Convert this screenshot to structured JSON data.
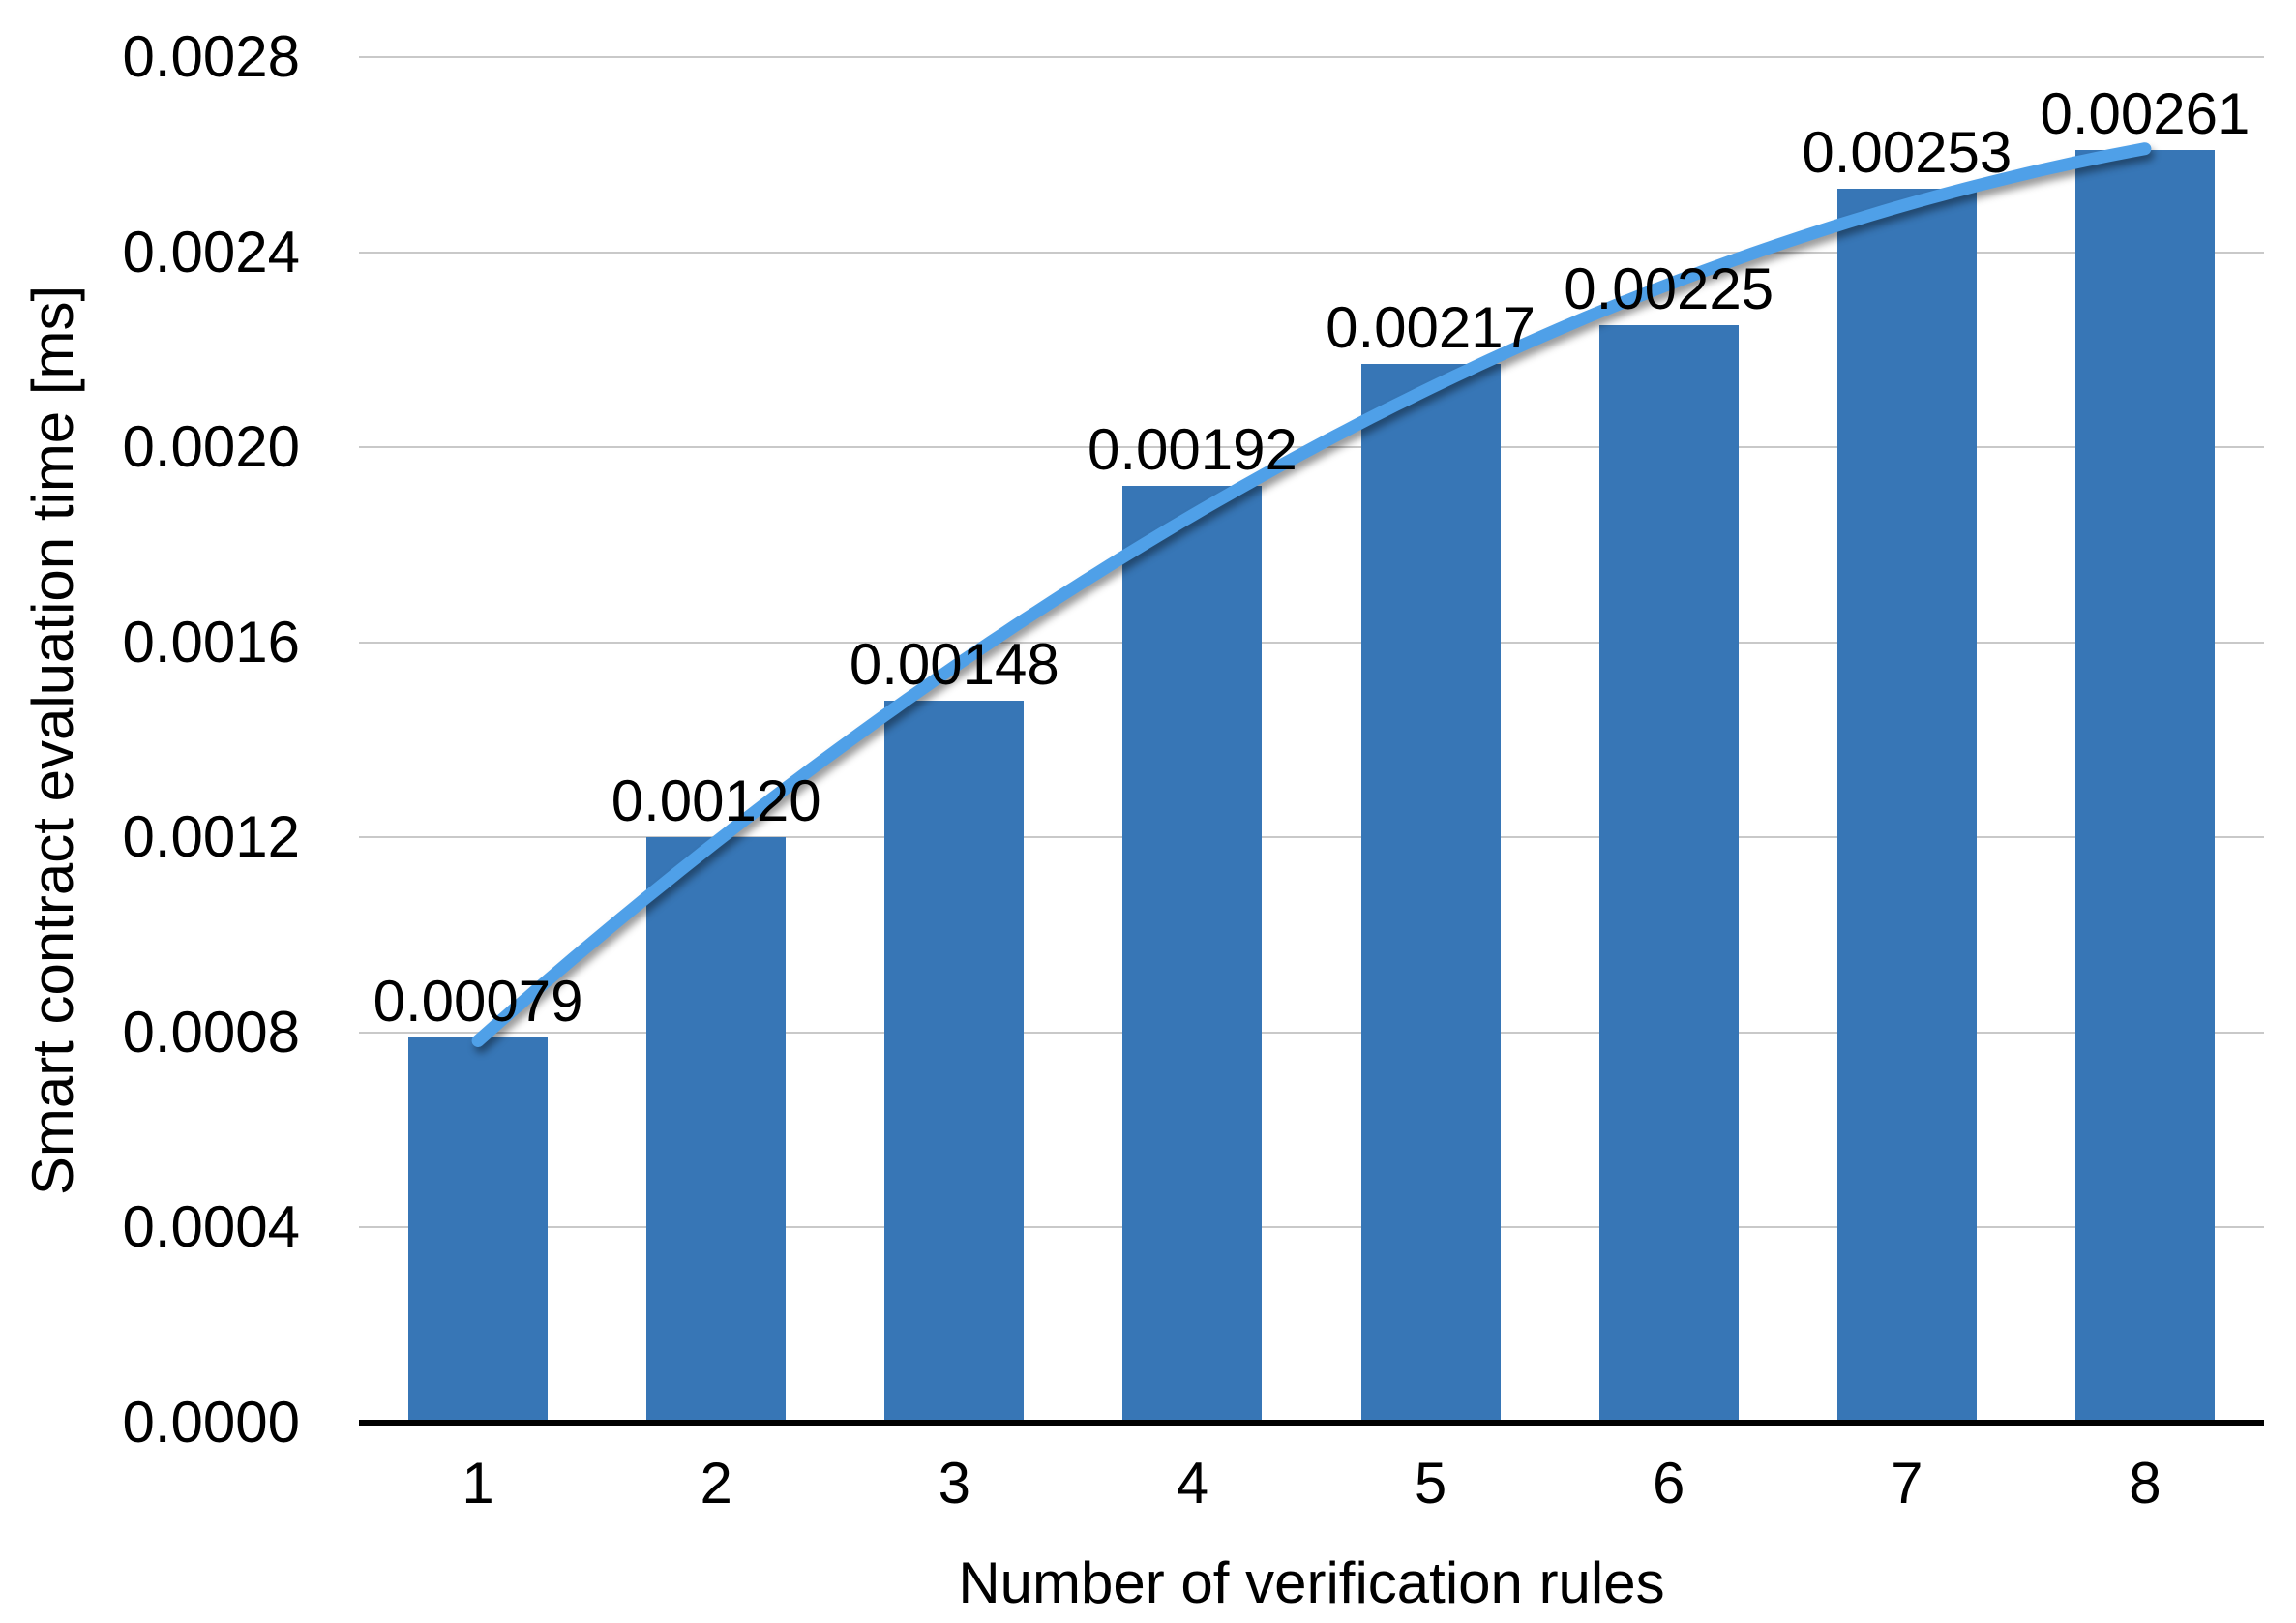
{
  "chart_data": {
    "type": "bar",
    "title": "",
    "categories": [
      "1",
      "2",
      "3",
      "4",
      "5",
      "6",
      "7",
      "8"
    ],
    "values": [
      0.00079,
      0.0012,
      0.00148,
      0.00192,
      0.00217,
      0.00225,
      0.00253,
      0.00261
    ],
    "bar_labels": [
      "0.00079",
      "0.00120",
      "0.00148",
      "0.00192",
      "0.00217",
      "0.00225",
      "0.00253",
      "0.00261"
    ],
    "xlabel": "Number of verification rules",
    "ylabel": "Smart contract evaluation time [ms]",
    "ylim": [
      0,
      0.0028
    ],
    "ytick_step": 0.0004,
    "ytick_labels": [
      "0.0000",
      "0.0004",
      "0.0008",
      "0.0012",
      "0.0016",
      "0.0020",
      "0.0024",
      "0.0028"
    ],
    "grid": true,
    "legend": "none",
    "trendline": {
      "type": "quadratic_fit",
      "stroke_width": 13
    },
    "colors": {
      "bar": "#3776b6",
      "trendline": "#4fa0e8",
      "gridline": "#c9c9c9",
      "baseline": "#000000",
      "text": "#000000",
      "background": "#ffffff"
    }
  }
}
